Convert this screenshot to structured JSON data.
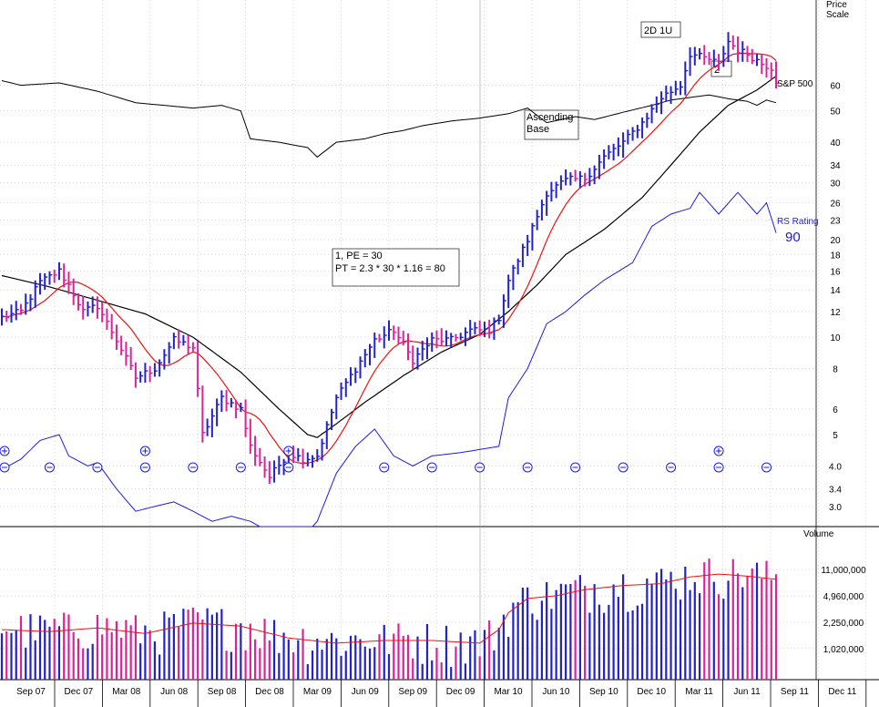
{
  "chart_data": {
    "type": "ohlc",
    "price_axis": {
      "title_line1": "Price",
      "title_line2": "Scale",
      "scale": "log",
      "range": [
        2.6,
        110
      ],
      "ticks": [
        {
          "value": 60,
          "label": "60"
        },
        {
          "value": 50,
          "label": "50"
        },
        {
          "value": 40,
          "label": "40"
        },
        {
          "value": 34,
          "label": "34"
        },
        {
          "value": 30,
          "label": "30"
        },
        {
          "value": 26,
          "label": "26"
        },
        {
          "value": 23,
          "label": "23"
        },
        {
          "value": 20,
          "label": "20"
        },
        {
          "value": 18,
          "label": "18"
        },
        {
          "value": 16,
          "label": "16"
        },
        {
          "value": 14,
          "label": "14"
        },
        {
          "value": 12,
          "label": "12"
        },
        {
          "value": 10,
          "label": "10"
        },
        {
          "value": 8,
          "label": "8"
        },
        {
          "value": 6,
          "label": "6"
        },
        {
          "value": 5,
          "label": "5"
        },
        {
          "value": 4,
          "label": "4.0"
        },
        {
          "value": 3.4,
          "label": "3.4"
        },
        {
          "value": 3,
          "label": "3.0"
        }
      ]
    },
    "volume_axis": {
      "title": "Volume",
      "scale": "log",
      "range": [
        400000,
        40000000
      ],
      "ticks": [
        {
          "value": 11000000,
          "label": "11,000,000"
        },
        {
          "value": 4960000,
          "label": "4,960,000"
        },
        {
          "value": 2250000,
          "label": "2,250,000"
        },
        {
          "value": 1020000,
          "label": "1,020,000"
        }
      ]
    },
    "x_axis": {
      "ticks": [
        "Sep 07",
        "Dec 07",
        "Mar 08",
        "Jun 08",
        "Sep 08",
        "Dec 08",
        "Mar 09",
        "Jun 09",
        "Sep 09",
        "Dec 09",
        "Mar 10",
        "Jun 10",
        "Sep 10",
        "Dec 10",
        "Mar 11",
        "Jun 11",
        "Sep 11",
        "Dec 11"
      ],
      "data_weeks": 163
    },
    "price_anchors": [
      [
        0,
        11.5
      ],
      [
        4,
        12.0
      ],
      [
        8,
        14.8
      ],
      [
        12,
        16.0
      ],
      [
        14,
        14.5
      ],
      [
        17,
        12.0
      ],
      [
        20,
        12.5
      ],
      [
        24,
        9.8
      ],
      [
        28,
        7.5
      ],
      [
        32,
        8.0
      ],
      [
        36,
        9.8
      ],
      [
        40,
        9.3
      ],
      [
        42,
        5.0
      ],
      [
        46,
        6.5
      ],
      [
        50,
        6.0
      ],
      [
        52,
        4.6
      ],
      [
        56,
        3.7
      ],
      [
        60,
        4.4
      ],
      [
        63,
        4.2
      ],
      [
        66,
        4.3
      ],
      [
        70,
        6.5
      ],
      [
        74,
        8.0
      ],
      [
        78,
        9.8
      ],
      [
        82,
        10.5
      ],
      [
        86,
        8.5
      ],
      [
        90,
        9.8
      ],
      [
        94,
        9.8
      ],
      [
        98,
        10.5
      ],
      [
        102,
        10.5
      ],
      [
        104,
        11.5
      ],
      [
        106,
        15.0
      ],
      [
        110,
        20.0
      ],
      [
        114,
        28.0
      ],
      [
        118,
        30.5
      ],
      [
        122,
        31.0
      ],
      [
        126,
        36.0
      ],
      [
        130,
        40.0
      ],
      [
        134,
        46.0
      ],
      [
        138,
        55.0
      ],
      [
        142,
        60.0
      ],
      [
        144,
        75.0
      ],
      [
        148,
        72.0
      ],
      [
        150,
        70.0
      ],
      [
        152,
        82.0
      ],
      [
        154,
        77.0
      ],
      [
        156,
        75.0
      ],
      [
        159,
        70.0
      ],
      [
        161,
        68.0
      ],
      [
        162,
        62.0
      ]
    ],
    "sma50_anchors": [
      [
        0,
        15.5
      ],
      [
        10,
        14.3
      ],
      [
        20,
        13.0
      ],
      [
        30,
        11.8
      ],
      [
        40,
        10.0
      ],
      [
        50,
        7.8
      ],
      [
        58,
        6.0
      ],
      [
        64,
        5.0
      ],
      [
        66,
        4.9
      ],
      [
        70,
        5.4
      ],
      [
        76,
        6.3
      ],
      [
        84,
        7.6
      ],
      [
        92,
        9.0
      ],
      [
        100,
        10.2
      ],
      [
        106,
        12.0
      ],
      [
        112,
        14.5
      ],
      [
        118,
        18.0
      ],
      [
        126,
        21.5
      ],
      [
        134,
        27.0
      ],
      [
        140,
        34.0
      ],
      [
        146,
        43.0
      ],
      [
        152,
        52.0
      ],
      [
        158,
        58.0
      ],
      [
        162,
        64.0
      ]
    ],
    "sp500_anchors": [
      [
        0,
        62.0
      ],
      [
        4,
        60.0
      ],
      [
        12,
        61.0
      ],
      [
        20,
        57.5
      ],
      [
        28,
        53.0
      ],
      [
        34,
        52.0
      ],
      [
        40,
        51.0
      ],
      [
        46,
        52.0
      ],
      [
        50,
        50.0
      ],
      [
        52,
        41.0
      ],
      [
        58,
        40.0
      ],
      [
        64,
        38.5
      ],
      [
        66,
        36.0
      ],
      [
        70,
        40.0
      ],
      [
        76,
        41.0
      ],
      [
        80,
        42.5
      ],
      [
        84,
        43.5
      ],
      [
        88,
        45.0
      ],
      [
        94,
        46.5
      ],
      [
        100,
        47.5
      ],
      [
        106,
        49.0
      ],
      [
        110,
        51.0
      ],
      [
        114,
        46.0
      ],
      [
        120,
        48.0
      ],
      [
        124,
        47.0
      ],
      [
        130,
        49.5
      ],
      [
        136,
        52.0
      ],
      [
        140,
        54.0
      ],
      [
        144,
        55.0
      ],
      [
        148,
        56.0
      ],
      [
        152,
        54.5
      ],
      [
        156,
        53.5
      ],
      [
        158,
        52.0
      ],
      [
        160,
        54.0
      ],
      [
        162,
        53.0
      ]
    ],
    "rs_anchors": [
      [
        0,
        3.9
      ],
      [
        4,
        4.2
      ],
      [
        8,
        4.8
      ],
      [
        12,
        5.0
      ],
      [
        14,
        4.3
      ],
      [
        18,
        4.0
      ],
      [
        20,
        4.1
      ],
      [
        24,
        3.4
      ],
      [
        28,
        2.9
      ],
      [
        32,
        3.0
      ],
      [
        36,
        3.1
      ],
      [
        40,
        2.9
      ],
      [
        44,
        2.7
      ],
      [
        48,
        2.8
      ],
      [
        52,
        2.7
      ],
      [
        56,
        2.5
      ],
      [
        62,
        2.3
      ],
      [
        66,
        2.7
      ],
      [
        70,
        3.8
      ],
      [
        74,
        4.6
      ],
      [
        78,
        5.2
      ],
      [
        82,
        4.3
      ],
      [
        86,
        4.0
      ],
      [
        90,
        4.3
      ],
      [
        96,
        4.4
      ],
      [
        100,
        4.5
      ],
      [
        104,
        4.6
      ],
      [
        106,
        6.5
      ],
      [
        110,
        8.0
      ],
      [
        114,
        11.0
      ],
      [
        118,
        12.0
      ],
      [
        122,
        13.5
      ],
      [
        126,
        15.0
      ],
      [
        132,
        17.0
      ],
      [
        136,
        22.0
      ],
      [
        140,
        24.0
      ],
      [
        144,
        25.0
      ],
      [
        146,
        28.0
      ],
      [
        150,
        24.0
      ],
      [
        154,
        28.0
      ],
      [
        158,
        24.0
      ],
      [
        160,
        26.0
      ],
      [
        162,
        21.0
      ]
    ],
    "volume_anchors": [
      [
        0,
        1800000
      ],
      [
        10,
        1700000
      ],
      [
        20,
        1900000
      ],
      [
        30,
        1600000
      ],
      [
        40,
        2200000
      ],
      [
        50,
        2000000
      ],
      [
        60,
        1400000
      ],
      [
        70,
        1200000
      ],
      [
        80,
        1300000
      ],
      [
        90,
        1300000
      ],
      [
        100,
        1200000
      ],
      [
        104,
        1800000
      ],
      [
        106,
        3000000
      ],
      [
        110,
        4600000
      ],
      [
        116,
        5000000
      ],
      [
        122,
        6000000
      ],
      [
        130,
        6800000
      ],
      [
        138,
        7200000
      ],
      [
        144,
        8800000
      ],
      [
        150,
        9600000
      ],
      [
        156,
        9000000
      ],
      [
        162,
        8200000
      ]
    ],
    "signals": {
      "plus_weeks": [
        0,
        30,
        60,
        150
      ],
      "minus_weeks": [
        0,
        10,
        20,
        30,
        40,
        50,
        60,
        80,
        90,
        100,
        110,
        120,
        130,
        140,
        150,
        160
      ]
    },
    "annotations": [
      {
        "id": "pt",
        "line1": "1, PE = 30",
        "line2": "PT = 2.3 * 30 * 1.16 = 80"
      },
      {
        "id": "base",
        "line1": "Ascending",
        "line2": "Base"
      },
      {
        "id": "box-2d1u",
        "line1": "2D 1U"
      },
      {
        "id": "box-2",
        "line1": "2"
      }
    ],
    "labels": {
      "sp500": "S&P 500",
      "rs_title": "RS Rating",
      "rs_value": "90"
    },
    "colors": {
      "up_bar": "#2222cc",
      "down_bar": "#dd2299",
      "sma_short": "#ee1111",
      "sma_long": "#000000",
      "rs_line": "#1a1ae6",
      "sp500_line": "#000000",
      "signal": "#1a1ae6"
    }
  }
}
